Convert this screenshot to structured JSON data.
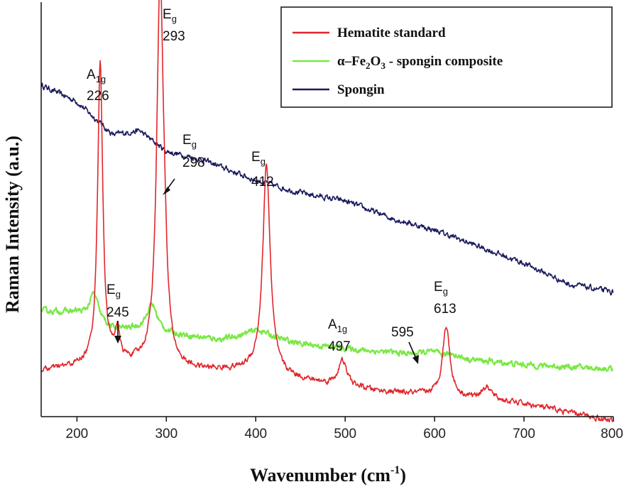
{
  "chart_data": {
    "type": "line",
    "title": "",
    "xlabel": "Wavenumber (cm",
    "xlabel_sup": "-1",
    "xlabel_close": ")",
    "ylabel": "Raman Intensity (a.u.)",
    "xlim": [
      160,
      800
    ],
    "ylim": [
      0,
      100
    ],
    "xticks": [
      200,
      300,
      400,
      500,
      600,
      700,
      800
    ],
    "yticks_shown": false,
    "legend_position": "top-right",
    "series": [
      {
        "name": "Hematite standard",
        "color": "#e0262b",
        "baseline": [
          [
            160,
            11
          ],
          [
            200,
            12
          ],
          [
            240,
            13
          ],
          [
            320,
            11
          ],
          [
            400,
            11
          ],
          [
            470,
            8
          ],
          [
            540,
            6
          ],
          [
            600,
            5
          ],
          [
            700,
            3
          ],
          [
            800,
            -1
          ]
        ],
        "peaks": [
          {
            "pos": 226,
            "height": 73,
            "width": 3.4
          },
          {
            "pos": 245,
            "height": 7,
            "width": 3
          },
          {
            "pos": 293,
            "height": 93,
            "width": 4.5
          },
          {
            "pos": 298,
            "height": 10,
            "width": 3
          },
          {
            "pos": 412,
            "height": 50,
            "width": 5
          },
          {
            "pos": 497,
            "height": 6,
            "width": 6
          },
          {
            "pos": 613,
            "height": 17,
            "width": 5
          },
          {
            "pos": 658,
            "height": 3,
            "width": 8
          }
        ]
      },
      {
        "name": "α–Fe₂O₃ - spongin composite",
        "name_parts": {
          "alpha": "α",
          "fe": "–Fe",
          "sub2": "2",
          "o": "O",
          "sub3": "3",
          "rest": " - spongin composite"
        },
        "color": "#7ae845",
        "baseline": [
          [
            160,
            25.5
          ],
          [
            200,
            25
          ],
          [
            240,
            21
          ],
          [
            270,
            21
          ],
          [
            300,
            20
          ],
          [
            360,
            18.5
          ],
          [
            400,
            19.5
          ],
          [
            450,
            17.5
          ],
          [
            520,
            16
          ],
          [
            600,
            14.5
          ],
          [
            700,
            12.5
          ],
          [
            800,
            11.5
          ]
        ],
        "peaks": [
          {
            "pos": 219,
            "height": 6.5,
            "width": 6
          },
          {
            "pos": 284,
            "height": 6.5,
            "width": 7
          },
          {
            "pos": 403,
            "height": 1.5,
            "width": 15
          },
          {
            "pos": 595,
            "height": 1.0,
            "width": 12
          },
          {
            "pos": 620,
            "height": 1.0,
            "width": 6
          }
        ]
      },
      {
        "name": "Spongin",
        "color": "#1a1a5e",
        "baseline": [
          [
            160,
            80
          ],
          [
            200,
            76
          ],
          [
            240,
            68
          ],
          [
            270,
            69
          ],
          [
            300,
            64
          ],
          [
            340,
            62
          ],
          [
            400,
            57
          ],
          [
            450,
            54
          ],
          [
            500,
            52
          ],
          [
            550,
            48
          ],
          [
            600,
            45
          ],
          [
            650,
            41
          ],
          [
            700,
            37
          ],
          [
            750,
            32
          ],
          [
            800,
            30
          ]
        ],
        "peaks": []
      }
    ],
    "annotations": [
      {
        "mode": "A",
        "sub": "1g",
        "value": "226"
      },
      {
        "mode": "E",
        "sub": "g",
        "value": "293"
      },
      {
        "mode": "E",
        "sub": "g",
        "value": "298",
        "arrow": true
      },
      {
        "mode": "E",
        "sub": "g",
        "value": "412"
      },
      {
        "mode": "E",
        "sub": "g",
        "value": "245",
        "arrow": true
      },
      {
        "mode": "A",
        "sub": "1g",
        "value": "497"
      },
      {
        "mode": "",
        "sub": "",
        "value": "595",
        "arrow": true
      },
      {
        "mode": "E",
        "sub": "g",
        "value": "613"
      }
    ]
  }
}
